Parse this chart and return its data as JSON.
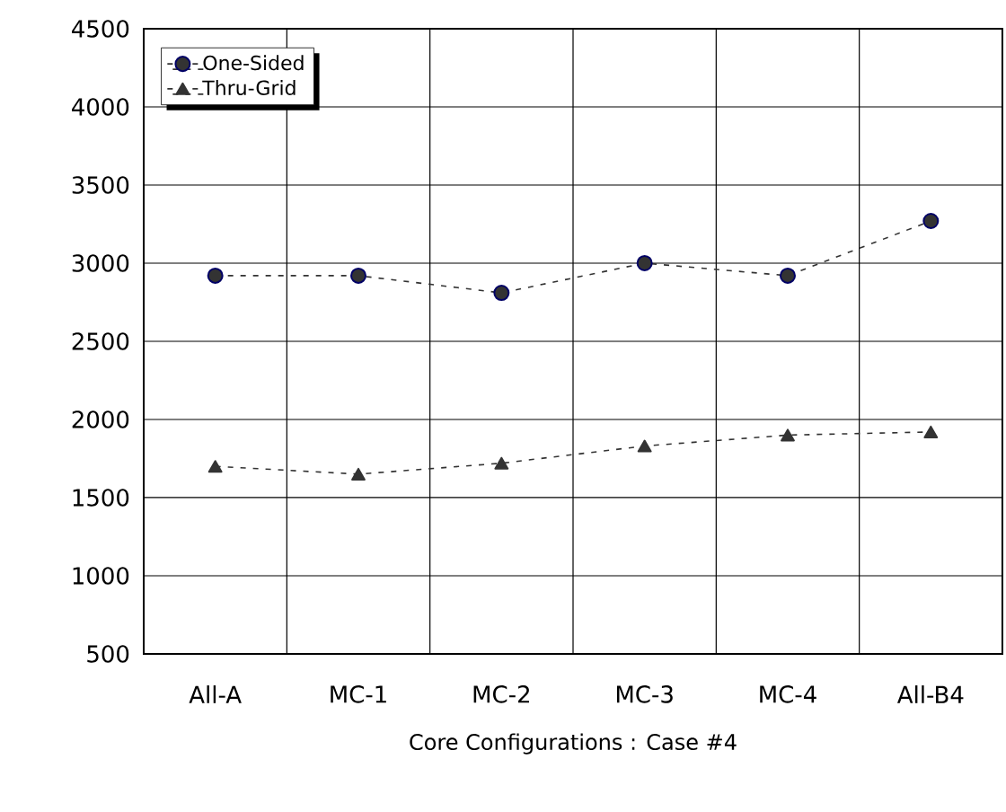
{
  "chart_data": {
    "type": "line",
    "xlabel": "Core Configurations : Case #4",
    "categories": [
      "All-A",
      "MC-1",
      "MC-2",
      "MC-3",
      "MC-4",
      "All-B4"
    ],
    "series": [
      {
        "name": "One-Sided",
        "color": "#333333",
        "marker": "circle",
        "values": [
          2920,
          2920,
          2810,
          3000,
          2920,
          3270
        ]
      },
      {
        "name": "Thru-Grid",
        "color": "#333333",
        "marker": "triangle",
        "values": [
          1700,
          1650,
          1720,
          1830,
          1900,
          1920
        ]
      }
    ],
    "ylim": [
      500,
      4500
    ],
    "yticks": [
      500,
      1000,
      1500,
      2000,
      2500,
      3000,
      3500,
      4000,
      4500
    ],
    "grid": true,
    "legend": "top left",
    "line_style": "dashed"
  }
}
